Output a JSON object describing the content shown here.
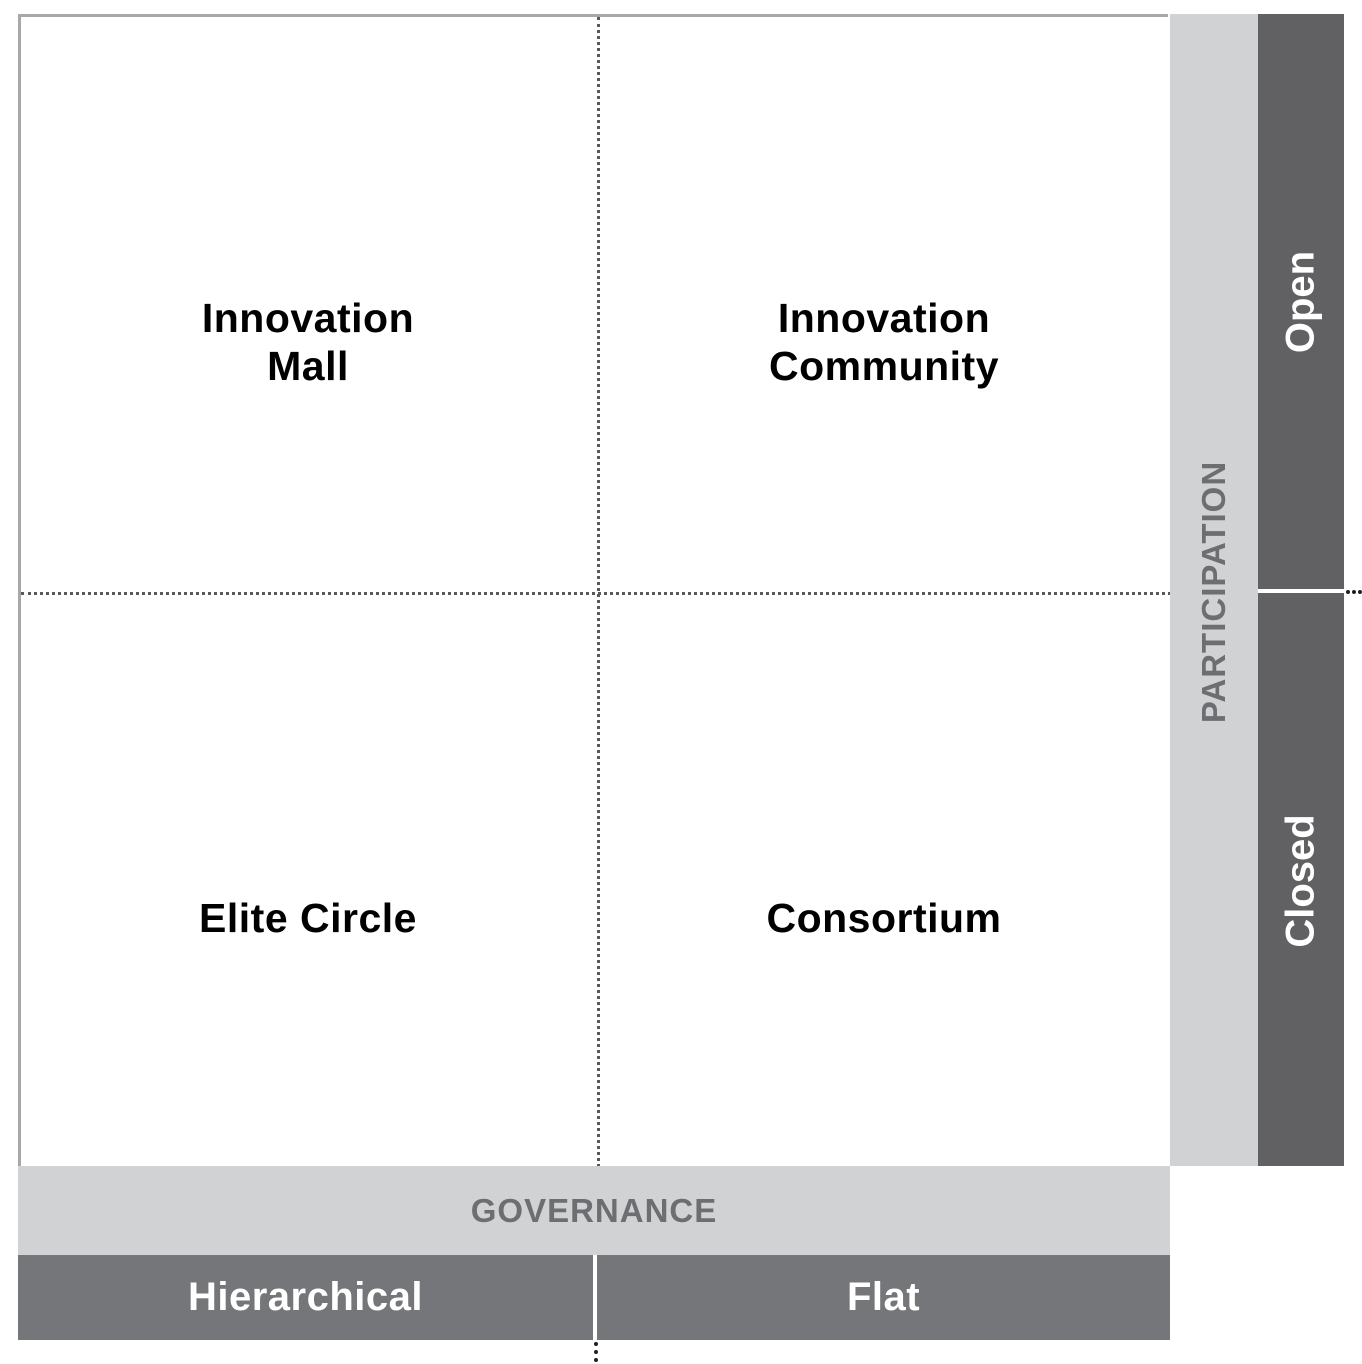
{
  "quadrants": {
    "top_left": [
      "Innovation",
      "Mall"
    ],
    "top_right": [
      "Innovation",
      "Community"
    ],
    "bottom_left": "Elite Circle",
    "bottom_right": "Consortium"
  },
  "vertical_axis": {
    "label": "PARTICIPATION",
    "categories": {
      "top": "Open",
      "bottom": "Closed"
    }
  },
  "horizontal_axis": {
    "label": "GOVERNANCE",
    "categories": {
      "left": "Hierarchical",
      "right": "Flat"
    }
  },
  "colors": {
    "axis_band": "#d1d2d4",
    "category_vertical": "#616163",
    "category_horizontal": "#757679",
    "axis_text": "#6d6e71",
    "divider": "#58595b"
  }
}
